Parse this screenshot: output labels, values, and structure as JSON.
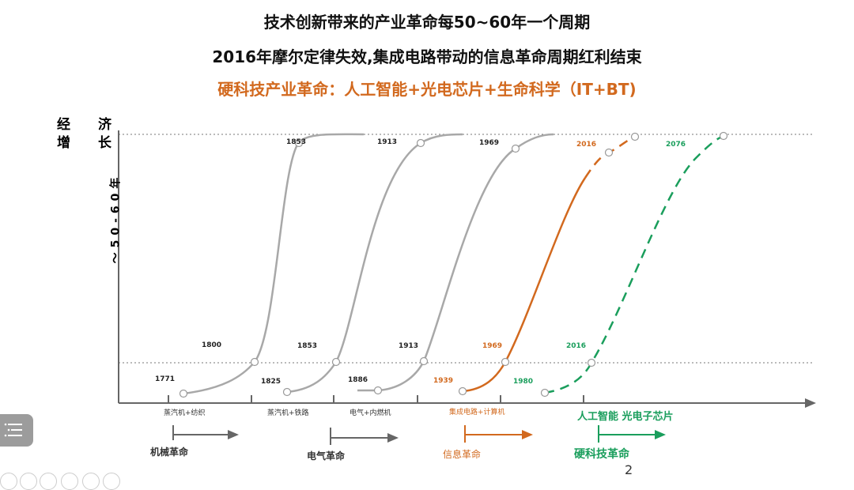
{
  "titles": {
    "line1": "技术创新带来的产业革命每50~60年一个周期",
    "line2": "2016年摩尔定律失效,集成电路带动的信息革命周期红利结束",
    "line3": "硬科技产业革命：人工智能+光电芯片+生命科学（IT+BT)"
  },
  "y_axis": {
    "c1": "经",
    "c2": "济",
    "c3": "增",
    "c4": "长",
    "period": "～50-60年"
  },
  "years_top": {
    "a": "1853",
    "b": "1913",
    "c": "1969",
    "d": "2016",
    "e": "2076"
  },
  "years_mid": {
    "a": "1800",
    "b": "1853",
    "c": "1913",
    "d": "1969",
    "e": "2016"
  },
  "years_low": {
    "a": "1771",
    "b": "1825",
    "c": "1886",
    "d": "1939",
    "e": "1980"
  },
  "tech": {
    "a": "蒸汽机+纺织",
    "b": "蒸汽机+铁路",
    "c": "电气+内燃机",
    "d": "集成电路+计算机",
    "e": "人工智能 光电子芯片"
  },
  "revolutions": {
    "a": "机械革命",
    "b": "电气革命",
    "c": "信息革命",
    "d": "硬科技革命"
  },
  "page_number": "2",
  "colors": {
    "orange": "#d2691e",
    "green": "#1a9e5c",
    "gray": "#a8a8a8"
  }
}
